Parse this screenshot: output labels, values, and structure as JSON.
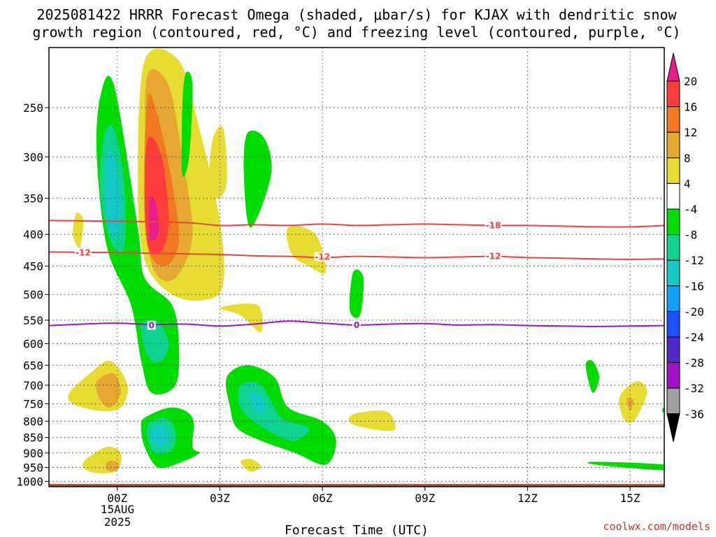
{
  "chart_data": {
    "type": "heatmap",
    "title_line1": "2025081422 HRRR Forecast Omega (shaded, μbar/s) for KJAX with dendritic snow",
    "title_line2": "growth region (contoured, red, °C) and freezing level (contoured, purple, °C)",
    "xlabel": "Forecast Time (UTC)",
    "x_ticks": [
      "00Z",
      "03Z",
      "06Z",
      "09Z",
      "12Z",
      "15Z"
    ],
    "x_tick_hours": [
      0,
      3,
      6,
      9,
      12,
      15
    ],
    "x_date_lines": [
      "15AUG",
      "2025"
    ],
    "xlim_hours": [
      -2,
      16
    ],
    "y_ticks": [
      250,
      300,
      350,
      400,
      450,
      500,
      550,
      600,
      650,
      700,
      750,
      800,
      850,
      900,
      950,
      1000
    ],
    "yscale": "log",
    "ylim_hPa": [
      1020,
      200
    ],
    "colorbar": {
      "labels": [
        "20",
        "16",
        "12",
        "8",
        "4",
        "-4",
        "-8",
        "-12",
        "-16",
        "-20",
        "-24",
        "-28",
        "-32",
        "-36"
      ],
      "colors": [
        "#ff3c3c",
        "#f07820",
        "#e6a832",
        "#e6dc32",
        "#ffffff",
        "#00dc00",
        "#10d290",
        "#14c8c8",
        "#10a0ff",
        "#1e50ff",
        "#5028c8",
        "#a014c8",
        "#a0a0a0"
      ],
      "top_arrow_color": "#e61e8c",
      "bottom_arrow_color": "#000000"
    },
    "isotherms_red": [
      {
        "label": "-18",
        "points": [
          [
            -2,
            380
          ],
          [
            0,
            381
          ],
          [
            2,
            383
          ],
          [
            3,
            387
          ],
          [
            4,
            386
          ],
          [
            5,
            387
          ],
          [
            6,
            385
          ],
          [
            7,
            387
          ],
          [
            8,
            386
          ],
          [
            9,
            385
          ],
          [
            10,
            386
          ],
          [
            11,
            387
          ],
          [
            12,
            387
          ],
          [
            13,
            388
          ],
          [
            14,
            389
          ],
          [
            15,
            389
          ],
          [
            16,
            387
          ]
        ]
      },
      {
        "label": "-12",
        "points": [
          [
            -2,
            427
          ],
          [
            0,
            428
          ],
          [
            1,
            429
          ],
          [
            2,
            430
          ],
          [
            3,
            431
          ],
          [
            4,
            433
          ],
          [
            5,
            434
          ],
          [
            6,
            436
          ],
          [
            7,
            434
          ],
          [
            8,
            435
          ],
          [
            9,
            436
          ],
          [
            10,
            435
          ],
          [
            11,
            434
          ],
          [
            12,
            436
          ],
          [
            13,
            437
          ],
          [
            14,
            438
          ],
          [
            15,
            439
          ],
          [
            16,
            438
          ]
        ]
      }
    ],
    "isotherm_red_label_positions": [
      [
        11,
        387,
        "-18"
      ],
      [
        -1,
        428,
        "-12"
      ],
      [
        6,
        435,
        "-12"
      ],
      [
        11,
        434,
        "-12"
      ]
    ],
    "freezing_level": {
      "label": "0",
      "points": [
        [
          -2,
          561
        ],
        [
          -1,
          558
        ],
        [
          0,
          556
        ],
        [
          1,
          559
        ],
        [
          2,
          558
        ],
        [
          3,
          562
        ],
        [
          4,
          558
        ],
        [
          5,
          552
        ],
        [
          6,
          556
        ],
        [
          7,
          560
        ],
        [
          8,
          558
        ],
        [
          9,
          557
        ],
        [
          10,
          560
        ],
        [
          11,
          559
        ],
        [
          12,
          561
        ],
        [
          13,
          562
        ],
        [
          14,
          563
        ],
        [
          15,
          562
        ],
        [
          16,
          561
        ]
      ]
    },
    "freezing_label_positions": [
      [
        1,
        561
      ],
      [
        7,
        560
      ]
    ],
    "ground_level_hPa": 1010,
    "omega_regions": [
      {
        "c": 4,
        "pts": [
          [
            0.8,
            210
          ],
          [
            1.8,
            210
          ],
          [
            2.4,
            270
          ],
          [
            3.0,
            380
          ],
          [
            3.1,
            480
          ],
          [
            2.6,
            510
          ],
          [
            1.6,
            500
          ],
          [
            0.8,
            440
          ],
          [
            0.6,
            330
          ]
        ]
      },
      {
        "c": 8,
        "pts": [
          [
            0.9,
            220
          ],
          [
            1.5,
            230
          ],
          [
            1.9,
            300
          ],
          [
            2.2,
            400
          ],
          [
            1.7,
            470
          ],
          [
            1.1,
            460
          ],
          [
            0.8,
            380
          ],
          [
            0.8,
            280
          ]
        ]
      },
      {
        "c": 12,
        "pts": [
          [
            0.9,
            240
          ],
          [
            1.2,
            260
          ],
          [
            1.6,
            330
          ],
          [
            1.8,
            410
          ],
          [
            1.4,
            450
          ],
          [
            0.9,
            420
          ],
          [
            0.8,
            320
          ]
        ]
      },
      {
        "c": 16,
        "pts": [
          [
            0.9,
            280
          ],
          [
            1.3,
            300
          ],
          [
            1.5,
            380
          ],
          [
            1.3,
            425
          ],
          [
            0.9,
            420
          ],
          [
            0.8,
            340
          ]
        ]
      },
      {
        "c": 20,
        "pts": [
          [
            0.95,
            350
          ],
          [
            1.15,
            360
          ],
          [
            1.2,
            400
          ],
          [
            0.95,
            405
          ]
        ]
      },
      {
        "c": -4,
        "pts": [
          [
            -0.5,
            240
          ],
          [
            -0.1,
            230
          ],
          [
            0.6,
            390
          ],
          [
            0.8,
            470
          ],
          [
            1.6,
            520
          ],
          [
            1.8,
            600
          ],
          [
            1.7,
            700
          ],
          [
            1.0,
            720
          ],
          [
            0.7,
            640
          ],
          [
            0.4,
            520
          ],
          [
            -0.3,
            420
          ],
          [
            -0.6,
            300
          ]
        ]
      },
      {
        "c": -8,
        "pts": [
          [
            -0.4,
            280
          ],
          [
            -0.1,
            270
          ],
          [
            0.2,
            330
          ],
          [
            0.2,
            420
          ],
          [
            -0.2,
            410
          ],
          [
            -0.5,
            340
          ]
        ]
      },
      {
        "c": -12,
        "pts": [
          [
            -0.3,
            300
          ],
          [
            -0.1,
            300
          ],
          [
            0.1,
            350
          ],
          [
            0.0,
            400
          ],
          [
            -0.3,
            380
          ]
        ]
      },
      {
        "c": -8,
        "pts": [
          [
            0.7,
            560
          ],
          [
            1.2,
            555
          ],
          [
            1.5,
            600
          ],
          [
            1.3,
            640
          ],
          [
            0.9,
            630
          ]
        ]
      },
      {
        "c": -4,
        "pts": [
          [
            2.0,
            220
          ],
          [
            2.2,
            230
          ],
          [
            2.1,
            300
          ],
          [
            1.9,
            320
          ],
          [
            1.9,
            250
          ]
        ]
      },
      {
        "c": -4,
        "pts": [
          [
            3.8,
            275
          ],
          [
            4.3,
            280
          ],
          [
            4.5,
            320
          ],
          [
            3.9,
            390
          ],
          [
            3.7,
            320
          ]
        ]
      },
      {
        "c": -4,
        "pts": [
          [
            6.9,
            460
          ],
          [
            7.2,
            470
          ],
          [
            7.1,
            540
          ],
          [
            6.8,
            530
          ]
        ]
      },
      {
        "c": 4,
        "pts": [
          [
            -1.2,
            370
          ],
          [
            -1.0,
            380
          ],
          [
            -1.1,
            420
          ],
          [
            -1.3,
            400
          ]
        ]
      },
      {
        "c": 4,
        "pts": [
          [
            2.8,
            280
          ],
          [
            3.1,
            270
          ],
          [
            3.2,
            330
          ],
          [
            2.9,
            350
          ],
          [
            2.7,
            320
          ]
        ]
      },
      {
        "c": 4,
        "pts": [
          [
            5.0,
            390
          ],
          [
            5.8,
            400
          ],
          [
            6.1,
            460
          ],
          [
            5.6,
            450
          ],
          [
            5.1,
            430
          ]
        ]
      },
      {
        "c": 4,
        "pts": [
          [
            3.0,
            525
          ],
          [
            4.1,
            520
          ],
          [
            4.2,
            575
          ],
          [
            3.6,
            540
          ]
        ]
      },
      {
        "c": 4,
        "pts": [
          [
            -1.4,
            720
          ],
          [
            -0.8,
            670
          ],
          [
            -0.2,
            640
          ],
          [
            0.3,
            700
          ],
          [
            0.1,
            760
          ],
          [
            -0.5,
            770
          ],
          [
            -1.3,
            750
          ]
        ]
      },
      {
        "c": 8,
        "pts": [
          [
            -0.6,
            690
          ],
          [
            -0.1,
            670
          ],
          [
            0.1,
            720
          ],
          [
            -0.2,
            760
          ],
          [
            -0.5,
            740
          ]
        ]
      },
      {
        "c": -4,
        "pts": [
          [
            0.8,
            790
          ],
          [
            1.6,
            760
          ],
          [
            2.2,
            790
          ],
          [
            2.2,
            880
          ],
          [
            2.4,
            900
          ],
          [
            1.9,
            930
          ],
          [
            1.2,
            950
          ],
          [
            0.8,
            880
          ],
          [
            0.7,
            820
          ]
        ]
      },
      {
        "c": -8,
        "pts": [
          [
            0.9,
            810
          ],
          [
            1.4,
            790
          ],
          [
            1.7,
            830
          ],
          [
            1.6,
            890
          ],
          [
            1.1,
            900
          ],
          [
            0.9,
            860
          ]
        ]
      },
      {
        "c": -12,
        "pts": [
          [
            1.0,
            830
          ],
          [
            1.3,
            810
          ],
          [
            1.5,
            850
          ],
          [
            1.3,
            880
          ],
          [
            1.05,
            870
          ]
        ]
      },
      {
        "c": -4,
        "pts": [
          [
            3.2,
            680
          ],
          [
            3.8,
            650
          ],
          [
            4.6,
            680
          ],
          [
            5.0,
            760
          ],
          [
            6.0,
            800
          ],
          [
            6.4,
            860
          ],
          [
            6.1,
            940
          ],
          [
            5.2,
            900
          ],
          [
            4.2,
            860
          ],
          [
            3.5,
            820
          ],
          [
            3.3,
            760
          ]
        ]
      },
      {
        "c": -8,
        "pts": [
          [
            3.6,
            700
          ],
          [
            4.2,
            700
          ],
          [
            4.8,
            790
          ],
          [
            5.6,
            820
          ],
          [
            5.2,
            860
          ],
          [
            4.6,
            840
          ],
          [
            4.0,
            800
          ],
          [
            3.6,
            760
          ]
        ]
      },
      {
        "c": -12,
        "pts": [
          [
            3.9,
            720
          ],
          [
            4.2,
            730
          ],
          [
            4.3,
            770
          ],
          [
            4.0,
            770
          ]
        ]
      },
      {
        "c": 4,
        "pts": [
          [
            -0.9,
            920
          ],
          [
            -0.3,
            880
          ],
          [
            0.1,
            900
          ],
          [
            0.0,
            960
          ],
          [
            -0.6,
            970
          ],
          [
            -1.0,
            950
          ]
        ]
      },
      {
        "c": 8,
        "pts": [
          [
            -0.3,
            930
          ],
          [
            0.0,
            930
          ],
          [
            0.0,
            960
          ],
          [
            -0.3,
            960
          ]
        ]
      },
      {
        "c": 4,
        "pts": [
          [
            3.6,
            930
          ],
          [
            3.9,
            920
          ],
          [
            4.2,
            945
          ],
          [
            3.9,
            965
          ]
        ]
      },
      {
        "c": 4,
        "pts": [
          [
            6.9,
            780
          ],
          [
            7.8,
            770
          ],
          [
            8.1,
            800
          ],
          [
            8.0,
            830
          ],
          [
            6.9,
            810
          ]
        ]
      },
      {
        "c": -4,
        "pts": [
          [
            13.7,
            650
          ],
          [
            13.9,
            640
          ],
          [
            14.1,
            680
          ],
          [
            13.9,
            720
          ]
        ]
      },
      {
        "c": 4,
        "pts": [
          [
            14.7,
            730
          ],
          [
            15.2,
            690
          ],
          [
            15.5,
            720
          ],
          [
            15.1,
            800
          ],
          [
            14.8,
            790
          ]
        ]
      },
      {
        "c": 8,
        "pts": [
          [
            14.9,
            735
          ],
          [
            15.1,
            740
          ],
          [
            15.0,
            770
          ]
        ]
      },
      {
        "c": -4,
        "pts": [
          [
            14.0,
            930
          ],
          [
            16.0,
            940
          ],
          [
            16.0,
            960
          ],
          [
            14.0,
            940
          ]
        ]
      },
      {
        "c": -4,
        "pts": [
          [
            15.95,
            760
          ],
          [
            16.0,
            770
          ],
          [
            15.95,
            775
          ]
        ]
      }
    ],
    "credit": "coolwx.com/models"
  }
}
